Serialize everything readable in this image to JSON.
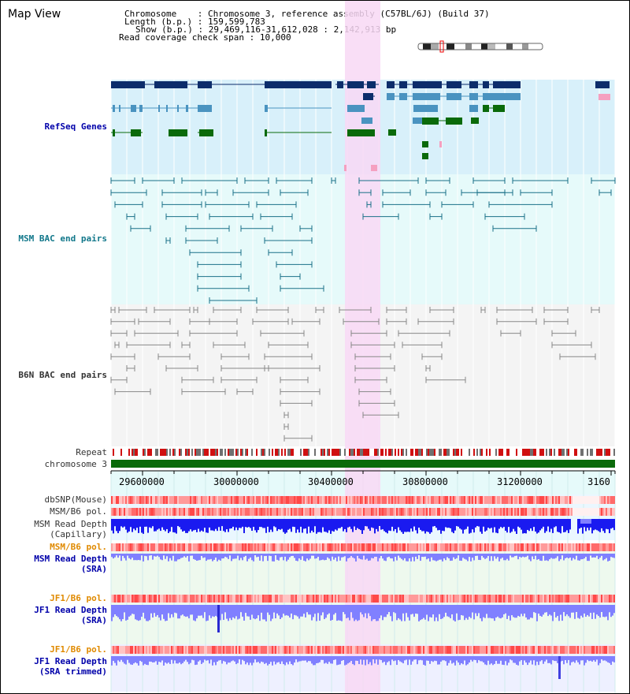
{
  "app_title": "Map View",
  "info": {
    "chromosome_key": "Chromosome",
    "chromosome_val": "Chromosome 3, reference assembly (C57BL/6J) (Build 37)",
    "length_key": "Length (b.p.)",
    "length_val": "159,599,783",
    "show_key": "Show (b.p.)",
    "show_val": "29,469,116-31,612,028 : 2,142,913 bp",
    "coverage_key": "Read coverage check span",
    "coverage_val": "10,000"
  },
  "tracks": {
    "refseq": "RefSeq Genes",
    "msm_bac": "MSM BAC end pairs",
    "b6n_bac": "B6N BAC end pairs",
    "repeat": "Repeat",
    "chromosome": "chromosome 3",
    "dbsnp": "dbSNP(Mouse)",
    "msm_b6_pol": "MSM/B6 pol.",
    "msm_read_depth": "MSM Read Depth",
    "msm_read_depth_sub": "(Capillary)",
    "msm_b6_pol_2": "MSM/B6 pol.",
    "msm_read_depth_sra": "MSM Read Depth",
    "msm_read_depth_sra_sub": "(SRA)",
    "jf1_b6_pol": "JF1/B6 pol.",
    "jf1_read_depth": "JF1 Read Depth",
    "jf1_read_depth_sub": "(SRA)",
    "jf1_b6_pol_2": "JF1/B6 pol.",
    "jf1_read_depth_trim": "JF1 Read Depth",
    "jf1_read_depth_trim_sub": "(SRA trimmed)"
  },
  "axis_ticks": [
    "29600000",
    "30000000",
    "30400000",
    "30800000",
    "31200000",
    "3160"
  ],
  "colors": {
    "refseq_bg": "#d8f0fa",
    "msm_bg": "#e6fafa",
    "b6n_bg": "#f4f4f4",
    "highlight": "#f8d8f4",
    "gene_navy": "#0c2d6b",
    "gene_blue": "#4a93c0",
    "gene_green": "#0a6a0a",
    "msm_line": "#1a7088",
    "b6n_line": "#888888",
    "repeat_red": "#d01010",
    "chrom_green": "#0a6a0a",
    "depth_blue": "#1a1af0",
    "depth_light": "#8080ff"
  }
}
